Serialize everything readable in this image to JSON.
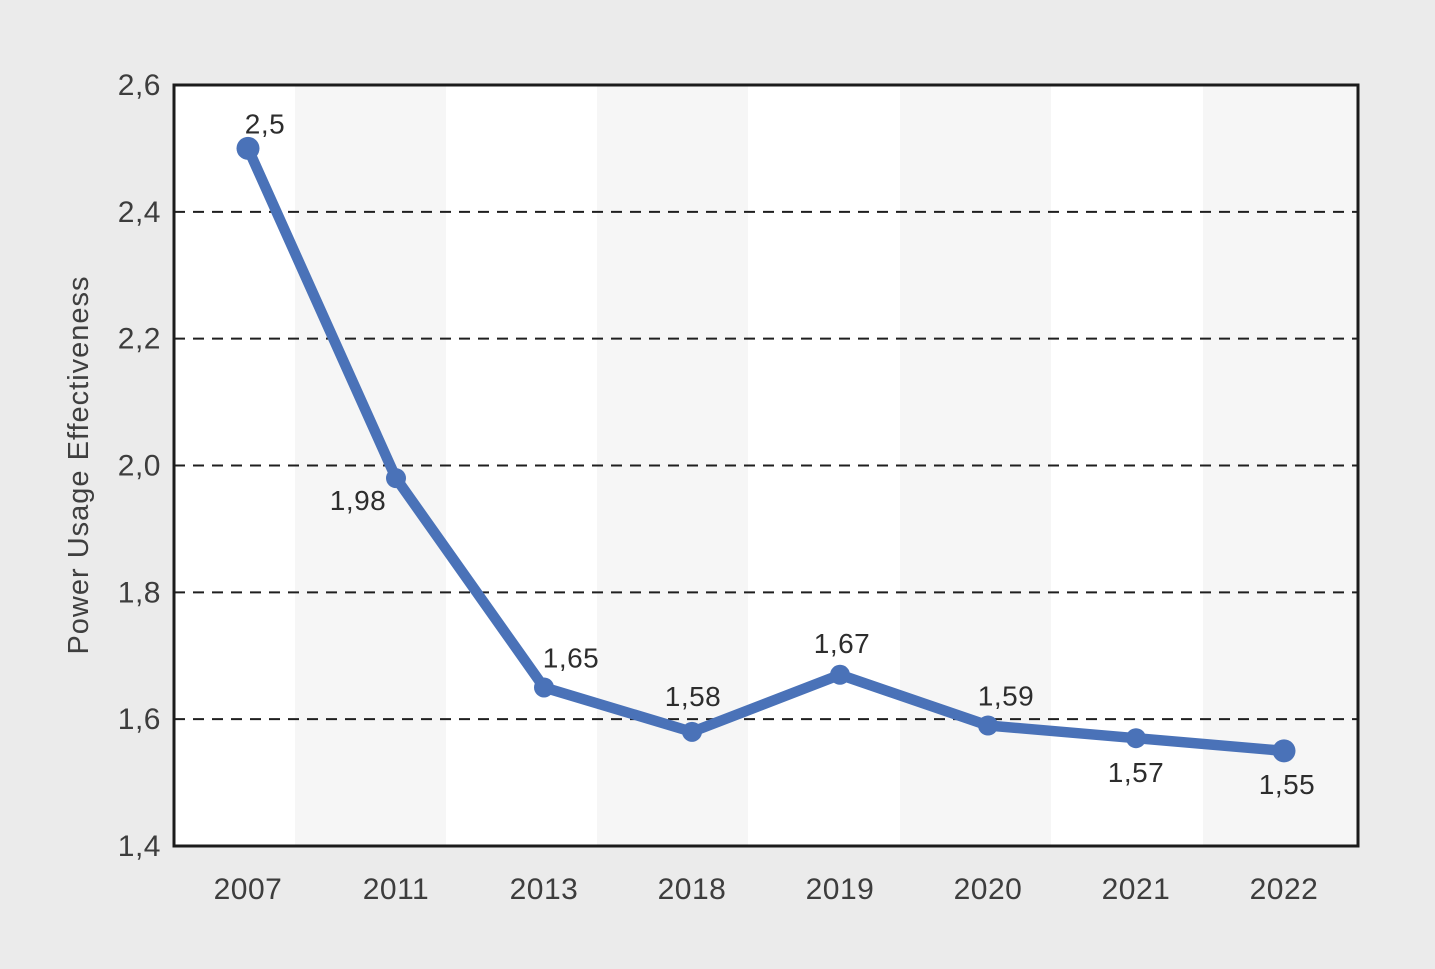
{
  "chart_data": {
    "type": "line",
    "title": "",
    "xlabel": "",
    "ylabel": "Power Usage Effectiveness",
    "categories": [
      "2007",
      "2011",
      "2013",
      "2018",
      "2019",
      "2020",
      "2021",
      "2022"
    ],
    "series": [
      {
        "name": "Power Usage Effectiveness",
        "values": [
          2.5,
          1.98,
          1.65,
          1.58,
          1.67,
          1.59,
          1.57,
          1.55
        ],
        "point_labels": [
          "2,5",
          "1,98",
          "1,65",
          "1,58",
          "1,67",
          "1,59",
          "1,57",
          "1,55"
        ]
      }
    ],
    "ylim": [
      1.4,
      2.6
    ],
    "yticks": {
      "values": [
        1.4,
        1.6,
        1.8,
        2.0,
        2.2,
        2.4,
        2.6
      ],
      "labels": [
        "1,4",
        "1,6",
        "1,8",
        "2,0",
        "2,2",
        "2,4",
        "2,6"
      ]
    },
    "grid": "horizontal-dashed",
    "legend": "none",
    "colors": {
      "line": "#4a72b8",
      "marker": "#4a72b8",
      "page_background": "#ebebeb",
      "plot_background": "#ffffff",
      "alt_band": "#f6f6f6",
      "frame": "#1b1b1b",
      "gridline": "#1f1f1f",
      "text": "#3d3d3d"
    }
  }
}
